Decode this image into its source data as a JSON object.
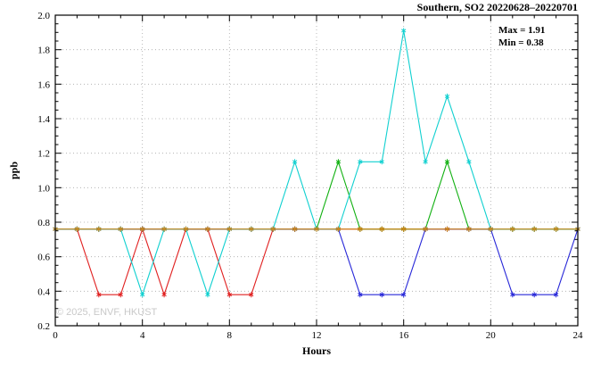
{
  "title": "Southern, SO2 20220628–20220701",
  "annotation": {
    "max_label": "Max = 1.91",
    "min_label": "Min = 0.38"
  },
  "watermark": "© 2025, ENVF, HKUST",
  "chart_data": {
    "type": "line",
    "title": "Southern, SO2 20220628–20220701",
    "xlabel": "Hours",
    "ylabel": "ppb",
    "xlim": [
      0,
      24
    ],
    "ylim": [
      0.2,
      2.0
    ],
    "x_ticks": [
      0,
      4,
      8,
      12,
      16,
      20,
      24
    ],
    "x_tick_labels": [
      "0",
      "4",
      "8",
      "12",
      "16",
      "20",
      "24"
    ],
    "y_ticks": [
      0.2,
      0.4,
      0.6,
      0.8,
      1.0,
      1.2,
      1.4,
      1.6,
      1.8,
      2.0
    ],
    "y_tick_labels": [
      "0.2",
      "0.4",
      "0.6",
      "0.8",
      "1.0",
      "1.2",
      "1.4",
      "1.6",
      "1.8",
      "2.0"
    ],
    "grid": "dotted-major",
    "legend": "none",
    "marker": "asterisk",
    "max_value": 1.91,
    "min_value": 0.38,
    "x": [
      0,
      1,
      2,
      3,
      4,
      5,
      6,
      7,
      8,
      9,
      10,
      11,
      12,
      13,
      14,
      15,
      16,
      17,
      18,
      19,
      20,
      21,
      22,
      23,
      24
    ],
    "series": [
      {
        "name": "red",
        "color": "#e02020",
        "values": [
          0.76,
          0.76,
          0.38,
          0.38,
          0.76,
          0.38,
          0.76,
          0.76,
          0.38,
          0.38,
          0.76,
          0.76,
          0.76,
          0.76,
          0.76,
          0.76,
          0.76,
          0.76,
          0.76,
          0.76,
          0.76,
          0.76,
          0.76,
          0.76,
          0.76
        ]
      },
      {
        "name": "green",
        "color": "#10b010",
        "values": [
          0.76,
          0.76,
          0.76,
          0.76,
          0.76,
          0.76,
          0.76,
          0.76,
          0.76,
          0.76,
          0.76,
          0.76,
          0.76,
          1.15,
          0.76,
          0.76,
          0.76,
          0.76,
          1.15,
          0.76,
          0.76,
          0.76,
          0.76,
          0.76,
          0.76
        ]
      },
      {
        "name": "blue",
        "color": "#2828d8",
        "values": [
          0.76,
          0.76,
          0.76,
          0.76,
          0.76,
          0.76,
          0.76,
          0.76,
          0.76,
          0.76,
          0.76,
          0.76,
          0.76,
          0.76,
          0.38,
          0.38,
          0.38,
          0.76,
          0.76,
          0.76,
          0.76,
          0.38,
          0.38,
          0.38,
          0.76
        ]
      },
      {
        "name": "cyan",
        "color": "#10d0d0",
        "values": [
          0.76,
          0.76,
          0.76,
          0.76,
          0.38,
          0.76,
          0.76,
          0.38,
          0.76,
          0.76,
          0.76,
          1.15,
          0.76,
          0.76,
          1.15,
          1.15,
          1.91,
          1.15,
          1.53,
          1.15,
          0.76,
          0.76,
          0.76,
          0.76,
          0.76
        ]
      },
      {
        "name": "orange",
        "color": "#d08818",
        "values": [
          0.76,
          0.76,
          0.76,
          0.76,
          0.76,
          0.76,
          0.76,
          0.76,
          0.76,
          0.76,
          0.76,
          0.76,
          0.76,
          0.76,
          0.76,
          0.76,
          0.76,
          0.76,
          0.76,
          0.76,
          0.76,
          0.76,
          0.76,
          0.76,
          0.76
        ]
      }
    ]
  }
}
